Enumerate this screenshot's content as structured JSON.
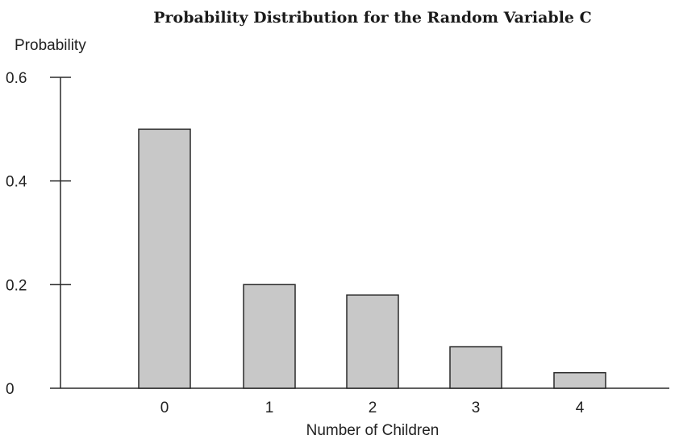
{
  "chart_data": {
    "type": "bar",
    "title": "Probability Distribution for the Random Variable C",
    "xlabel": "Number of Children",
    "ylabel": "Probability",
    "categories": [
      "0",
      "1",
      "2",
      "3",
      "4"
    ],
    "values": [
      0.5,
      0.2,
      0.18,
      0.08,
      0.03
    ],
    "yticks": [
      "0",
      "0.2",
      "0.4",
      "0.6"
    ],
    "ylim": [
      0,
      0.6
    ],
    "grid": false,
    "colors": {
      "bar_fill": "#c8c8c8",
      "bar_stroke": "#2a2a2a"
    }
  }
}
